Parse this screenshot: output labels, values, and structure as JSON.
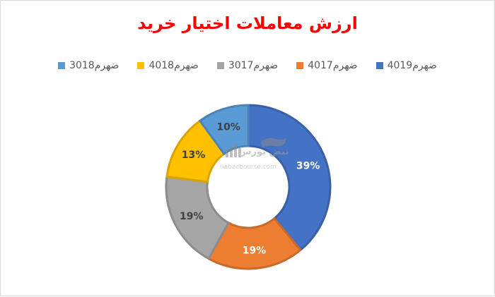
{
  "chart_data": {
    "type": "pie",
    "title": "ارزش معاملات اختیار خرید",
    "categories": [
      "ضهرم4019",
      "ضهرم4017",
      "ضهرم3017",
      "ضهرم4018",
      "ضهرم3018"
    ],
    "values": [
      39,
      19,
      19,
      13,
      10
    ],
    "labels": [
      "39%",
      "19%",
      "19%",
      "13%",
      "10%"
    ],
    "colors": [
      "#4472c4",
      "#ed7d31",
      "#a5a5a5",
      "#ffc000",
      "#5b9bd5"
    ],
    "label_colors": [
      "#ffffff",
      "#ffffff",
      "#404040",
      "#404040",
      "#404040"
    ],
    "legend_position": "top",
    "style": "doughnut"
  },
  "watermark": {
    "url_text": "nabzebourse.com",
    "logo_text": "نبض بورس"
  }
}
